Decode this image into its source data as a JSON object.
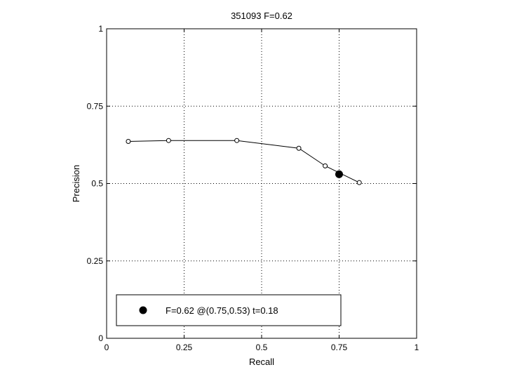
{
  "chart_data": {
    "type": "line",
    "title": "351093 F=0.62",
    "xlabel": "Recall",
    "ylabel": "Precision",
    "xlim": [
      0,
      1
    ],
    "ylim": [
      0,
      1
    ],
    "grid": true,
    "x_ticks": [
      0,
      0.25,
      0.5,
      0.75,
      1
    ],
    "x_tick_labels": [
      "0",
      "0.25",
      "0.5",
      "0.75",
      "1"
    ],
    "y_ticks": [
      0,
      0.25,
      0.5,
      0.75,
      1
    ],
    "y_tick_labels": [
      "0",
      "0.25",
      "0.5",
      "0.75",
      "1"
    ],
    "series": [
      {
        "marker": "open-circle",
        "color": "#000000",
        "x": [
          0.07,
          0.2,
          0.42,
          0.62,
          0.705,
          0.815
        ],
        "y": [
          0.636,
          0.639,
          0.639,
          0.614,
          0.557,
          0.503
        ]
      }
    ],
    "highlight": {
      "x": 0.75,
      "y": 0.53,
      "marker": "filled-circle",
      "color": "#000000"
    },
    "legend": {
      "position": "bottom-left",
      "text": "F=0.62 @(0.75,0.53) t=0.18"
    }
  }
}
